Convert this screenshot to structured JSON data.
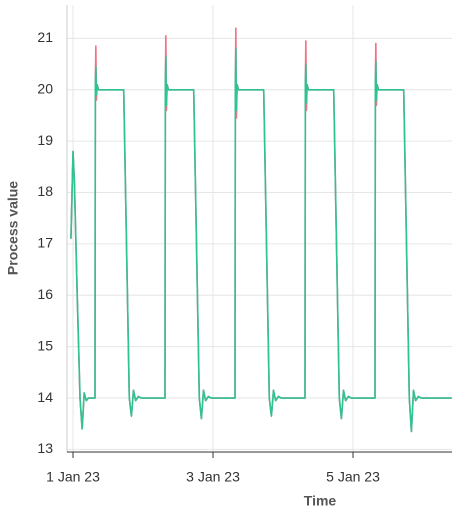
{
  "chart_data": {
    "type": "line",
    "x_label": "Time",
    "y_label": "Process value",
    "x": [
      0.97,
      1.0,
      1.02,
      1.06,
      1.1,
      1.13,
      1.16,
      1.19,
      1.22,
      1.314,
      1.319,
      1.326,
      1.334,
      1.344,
      1.364,
      1.724,
      1.804,
      1.834,
      1.864,
      1.894,
      1.934,
      1.974,
      2.314,
      2.319,
      2.326,
      2.334,
      2.344,
      2.364,
      2.724,
      2.804,
      2.834,
      2.864,
      2.894,
      2.934,
      2.974,
      3.314,
      3.319,
      3.326,
      3.334,
      3.344,
      3.364,
      3.724,
      3.804,
      3.834,
      3.864,
      3.894,
      3.934,
      3.974,
      4.314,
      4.319,
      4.326,
      4.334,
      4.344,
      4.364,
      4.724,
      4.804,
      4.834,
      4.864,
      4.894,
      4.934,
      4.974,
      5.314,
      5.319,
      5.326,
      5.334,
      5.344,
      5.364,
      5.724,
      5.804,
      5.834,
      5.864,
      5.894,
      5.934,
      5.974,
      6.41
    ],
    "series": [
      {
        "color": "#f07383",
        "values": [
          17.1,
          18.8,
          18.2,
          16.0,
          14.0,
          13.4,
          14.1,
          13.95,
          14.0,
          14.0,
          20.1,
          20.85,
          19.8,
          20.1,
          20.0,
          20.0,
          14.0,
          13.65,
          14.15,
          13.95,
          14.03,
          14.0,
          14.0,
          20.1,
          21.05,
          19.6,
          20.1,
          20.0,
          20.0,
          14.0,
          13.6,
          14.15,
          13.95,
          14.03,
          14.0,
          14.0,
          20.1,
          21.2,
          19.45,
          20.1,
          20.0,
          20.0,
          14.0,
          13.65,
          14.15,
          13.95,
          14.03,
          14.0,
          14.0,
          20.1,
          20.95,
          19.6,
          20.1,
          20.0,
          20.0,
          14.0,
          13.6,
          14.15,
          13.95,
          14.03,
          14.0,
          14.0,
          20.1,
          20.9,
          19.7,
          20.1,
          20.0,
          20.0,
          14.0,
          13.35,
          14.15,
          13.95,
          14.03,
          14.0,
          14.0
        ]
      },
      {
        "color": "#2ec394",
        "values": [
          17.1,
          18.8,
          18.2,
          16.0,
          14.0,
          13.4,
          14.1,
          13.95,
          14.0,
          14.0,
          20.1,
          20.45,
          19.9,
          20.1,
          20.0,
          20.0,
          14.0,
          13.65,
          14.15,
          13.95,
          14.03,
          14.0,
          14.0,
          20.1,
          20.65,
          19.7,
          20.1,
          20.0,
          20.0,
          14.0,
          13.6,
          14.15,
          13.95,
          14.03,
          14.0,
          14.0,
          20.1,
          20.8,
          19.6,
          20.1,
          20.0,
          20.0,
          14.0,
          13.65,
          14.15,
          13.95,
          14.03,
          14.0,
          14.0,
          20.1,
          20.5,
          19.75,
          20.1,
          20.0,
          20.0,
          14.0,
          13.6,
          14.15,
          13.95,
          14.03,
          14.0,
          14.0,
          20.1,
          20.55,
          19.8,
          20.1,
          20.0,
          20.0,
          14.0,
          13.35,
          14.15,
          13.95,
          14.03,
          14.0,
          14.0
        ]
      }
    ],
    "xlim": [
      0.914,
      6.414
    ],
    "xticks": [
      {
        "value": 1,
        "label": "1 Jan 23"
      },
      {
        "value": 3,
        "label": "3 Jan 23"
      },
      {
        "value": 5,
        "label": "5 Jan 23"
      }
    ],
    "ylim": [
      12.95,
      21.65
    ],
    "yticks": [
      13,
      14,
      15,
      16,
      17,
      18,
      19,
      20,
      21
    ],
    "grid": true
  }
}
